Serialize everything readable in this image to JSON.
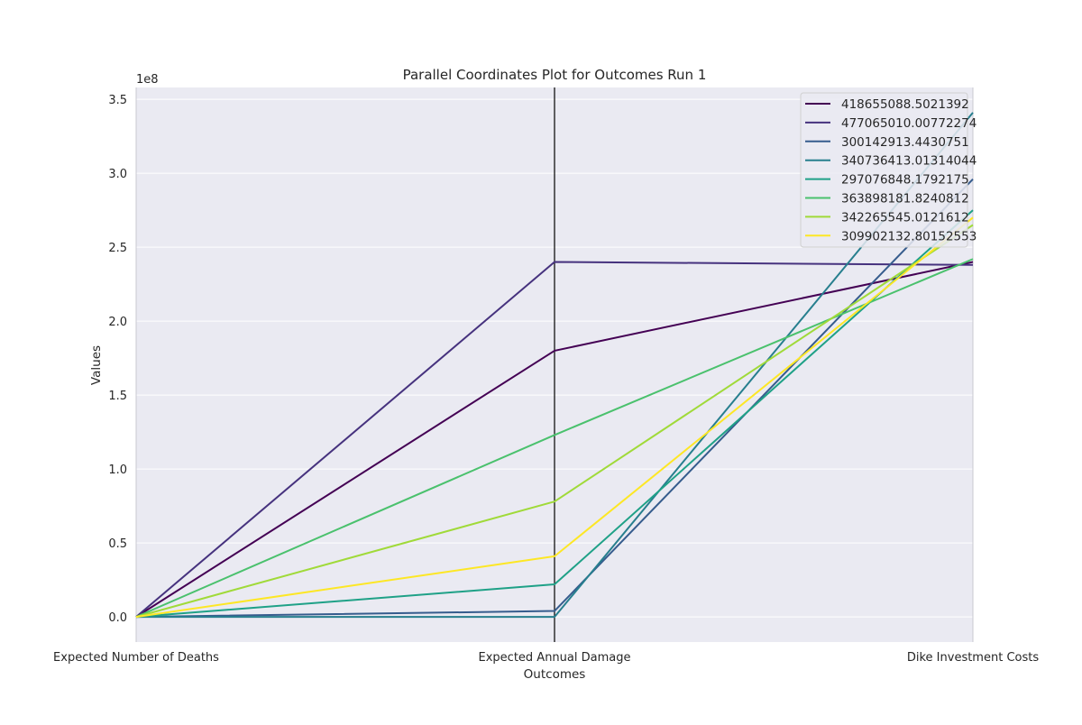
{
  "chart_data": {
    "type": "parallel_coordinates",
    "title": "Parallel Coordinates Plot for Outcomes Run 1",
    "xlabel": "Outcomes",
    "ylabel": "Values",
    "y_offset_label": "1e8",
    "ylim": [
      -0.17,
      3.58
    ],
    "yticks": [
      0.0,
      0.5,
      1.0,
      1.5,
      2.0,
      2.5,
      3.0,
      3.5
    ],
    "ytick_labels": [
      "0.0",
      "0.5",
      "1.0",
      "1.5",
      "2.0",
      "2.5",
      "3.0",
      "3.5"
    ],
    "categories": [
      "Expected Number of Deaths",
      "Expected Annual Damage",
      "Dike Investment Costs"
    ],
    "grid": true,
    "legend_position": "top-right",
    "background_color": "#eaeaf2",
    "series": [
      {
        "name": "418655088.5021392",
        "color": "#440154",
        "values": [
          0.0,
          1.8,
          2.4
        ]
      },
      {
        "name": "477065010.00772274",
        "color": "#46327e",
        "values": [
          0.0,
          2.4,
          2.38
        ]
      },
      {
        "name": "300142913.4430751",
        "color": "#365c8d",
        "values": [
          0.0,
          0.04,
          2.96
        ]
      },
      {
        "name": "340736413.01314044",
        "color": "#277f8e",
        "values": [
          0.0,
          0.0,
          3.41
        ]
      },
      {
        "name": "297076848.1792175",
        "color": "#1fa187",
        "values": [
          0.0,
          0.22,
          2.75
        ]
      },
      {
        "name": "363898181.8240812",
        "color": "#4ac16d",
        "values": [
          0.0,
          1.23,
          2.42
        ]
      },
      {
        "name": "342265545.0121612",
        "color": "#a0da39",
        "values": [
          0.0,
          0.78,
          2.65
        ]
      },
      {
        "name": "309902132.80152553",
        "color": "#fde725",
        "values": [
          0.0,
          0.41,
          2.7
        ]
      }
    ]
  }
}
